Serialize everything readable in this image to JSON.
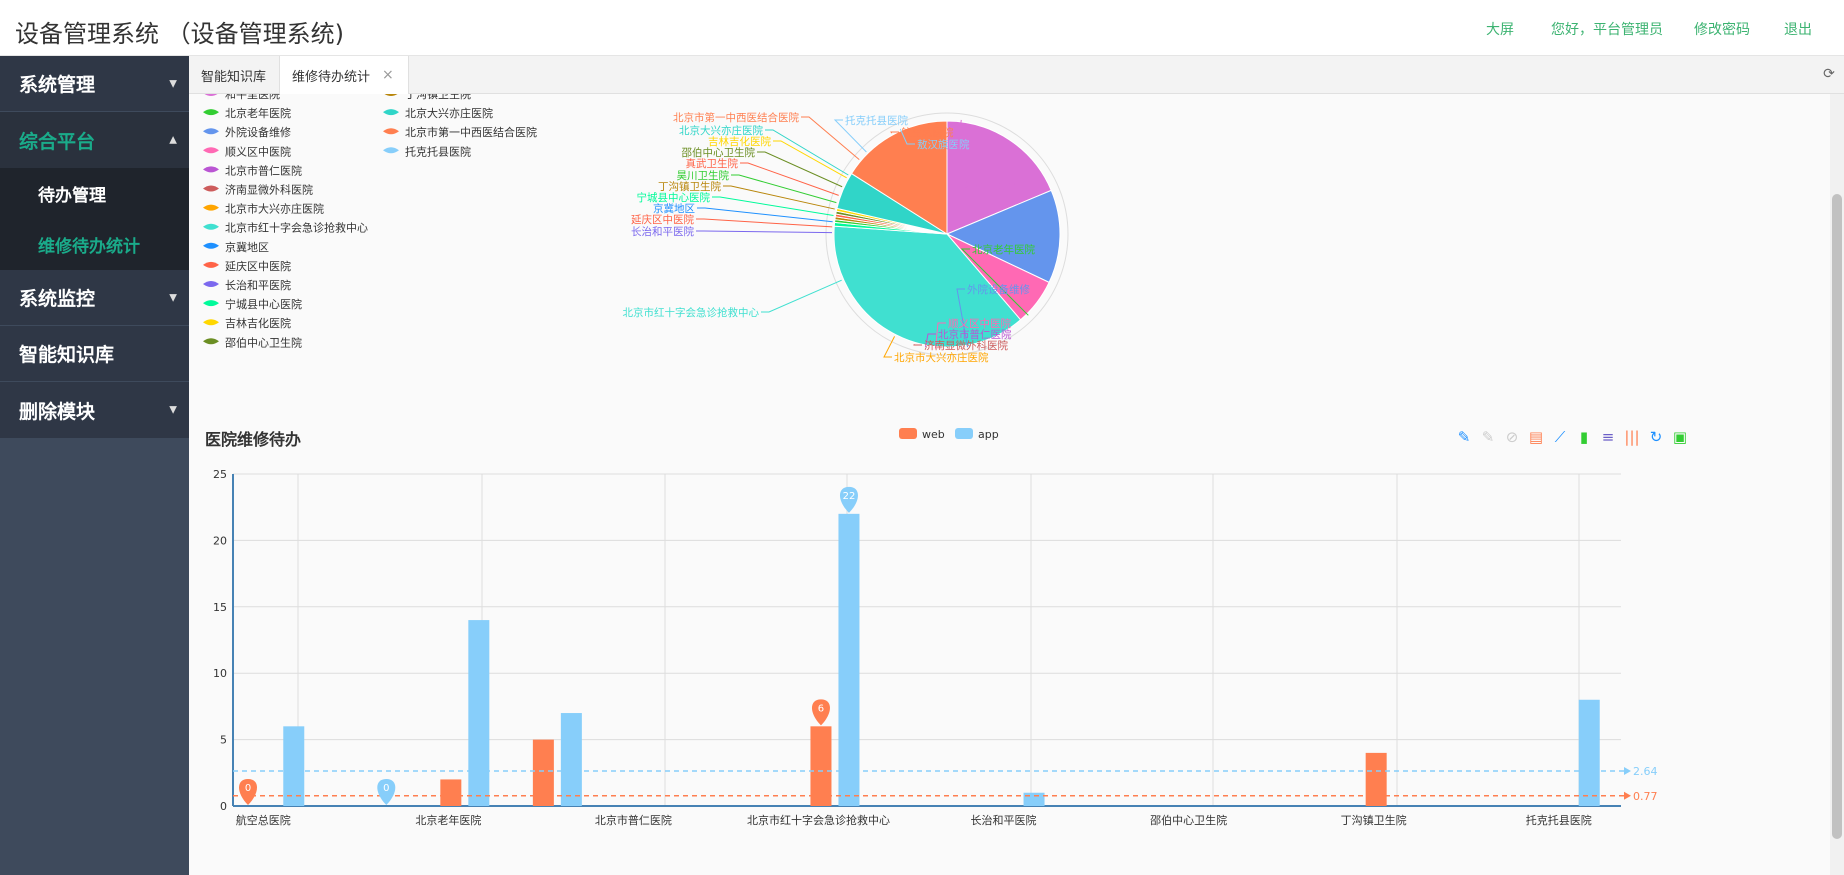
{
  "header": {
    "title": "设备管理系统 （设备管理系统)",
    "links": [
      "大屏",
      "您好，平台管理员",
      "修改密码",
      "退出"
    ]
  },
  "sidebar": {
    "menus": [
      {
        "label": "系统管理",
        "expanded": false
      },
      {
        "label": "综合平台",
        "expanded": true,
        "children": [
          "待办管理",
          "维修待办统计"
        ],
        "active_child": "维修待办统计"
      },
      {
        "label": "系统监控",
        "expanded": false
      },
      {
        "label": "智能知识库",
        "expanded": false
      },
      {
        "label": "删除模块",
        "expanded": false
      }
    ]
  },
  "tabs": [
    {
      "label": "智能知识库",
      "active": false
    },
    {
      "label": "维修待办统计",
      "active": true,
      "close_icon": "×"
    }
  ],
  "colors": {
    "accent": "#1aab8a",
    "web": "#ff7f50",
    "app": "#87cefa"
  },
  "pie": {
    "legend_col1": [
      "和平里医院",
      "北京老年医院",
      "外院设备维修",
      "顺义区中医院",
      "北京市普仁医院",
      "济南显微外科医院",
      "北京市大兴亦庄医院",
      "北京市红十字会急诊抢救中心",
      "京冀地区",
      "延庆区中医院",
      "长治和平医院",
      "宁城县中心医院",
      "吉林吉化医院",
      "邵伯中心卫生院"
    ],
    "legend_col2": [
      "丁沟镇卫生院",
      "北京大兴亦庄医院",
      "北京市第一中西医结合医院",
      "托克托县医院"
    ],
    "legend_colors_col1": [
      "#da70d6",
      "#32cd32",
      "#6495ed",
      "#ff69b4",
      "#ba55d3",
      "#cd5c5c",
      "#ffa500",
      "#40e0d0",
      "#1e90ff",
      "#ff6347",
      "#7b68ee",
      "#00fa9a",
      "#ffd700",
      "#6b8e23"
    ],
    "legend_colors_col2": [
      "#b8860b",
      "#30d5c8",
      "#ff7f50",
      "#87cefa"
    ],
    "slices": [
      {
        "name": "航空总医院",
        "value": 0
      },
      {
        "name": "敖汉旗医院",
        "value": 0
      },
      {
        "name": "和平里医院",
        "value": 14
      },
      {
        "name": "北京老年医院",
        "value": 0
      },
      {
        "name": "外院设备维修",
        "value": 10
      },
      {
        "name": "顺义区中医院",
        "value": 5
      },
      {
        "name": "北京市普仁医院",
        "value": 0
      },
      {
        "name": "济南显微外科医院",
        "value": 0
      },
      {
        "name": "北京市大兴亦庄医院",
        "value": 0
      },
      {
        "name": "北京市红十字会急诊抢救中心",
        "value": 28
      },
      {
        "name": "长治和平医院",
        "value": 0
      },
      {
        "name": "京冀地区",
        "value": 0
      },
      {
        "name": "延庆区中医院",
        "value": 0
      },
      {
        "name": "宁城县中心医院",
        "value": 0.4
      },
      {
        "name": "昊川卫生院",
        "value": 0.3
      },
      {
        "name": "丁沟镇卫生院",
        "value": 0.3
      },
      {
        "name": "真武卫生院",
        "value": 0.3
      },
      {
        "name": "邵伯中心卫生院",
        "value": 0.3
      },
      {
        "name": "吉林吉化医院",
        "value": 0.3
      },
      {
        "name": "北京大兴亦庄医院",
        "value": 4
      },
      {
        "name": "北京市第一中西医结合医院",
        "value": 12
      },
      {
        "name": "托克托县医院",
        "value": 0
      }
    ]
  },
  "bar": {
    "title": "医院维修待办",
    "legend": [
      "web",
      "app"
    ],
    "toolbox_icons": [
      "mark-icon",
      "mark-undo-icon",
      "mark-clear-icon",
      "data-view-icon",
      "line-chart-icon",
      "bar-chart-icon",
      "stack-icon",
      "tiled-icon",
      "restore-icon",
      "save-image-icon"
    ]
  },
  "chart_data": {
    "type": "bar",
    "title": "医院维修待办",
    "categories": [
      "航空总医院",
      "敖汉旗医院",
      "北京老年医院",
      "外院设备维修",
      "北京市普仁医院",
      "济南显微外科医院",
      "北京市红十字会急诊抢救中心",
      "京冀地区",
      "长治和平医院",
      "宁城县中心医院",
      "邵伯中心卫生院",
      "真武卫生院",
      "丁沟镇卫生院",
      "北京市第一中西医结合医院",
      "托克托县医院"
    ],
    "x_tick_labels": [
      "航空总医院",
      "北京老年医院",
      "北京市普仁医院",
      "北京市红十字会急诊抢救中心",
      "长治和平医院",
      "邵伯中心卫生院",
      "丁沟镇卫生院",
      "托克托县医院"
    ],
    "series": [
      {
        "name": "web",
        "values": [
          0,
          0,
          2,
          5,
          0,
          0,
          6,
          0,
          0,
          0,
          0,
          0,
          4,
          0,
          0
        ]
      },
      {
        "name": "app",
        "values": [
          6,
          0,
          14,
          7,
          0,
          0,
          22,
          0,
          1,
          0,
          0,
          0,
          0,
          0,
          8
        ]
      }
    ],
    "max_markers": [
      {
        "series": "app",
        "value": 22
      },
      {
        "series": "web",
        "value": 6
      }
    ],
    "min_markers": [
      {
        "series": "web",
        "value": 0
      },
      {
        "series": "app",
        "value": 0
      }
    ],
    "average_lines": [
      {
        "series": "app",
        "label": "2.64"
      },
      {
        "series": "web",
        "label": "0.77"
      }
    ],
    "ylim": [
      0,
      25
    ],
    "yticks": [
      0,
      5,
      10,
      15,
      20,
      25
    ],
    "grid": true,
    "legend_position": "top-center"
  }
}
